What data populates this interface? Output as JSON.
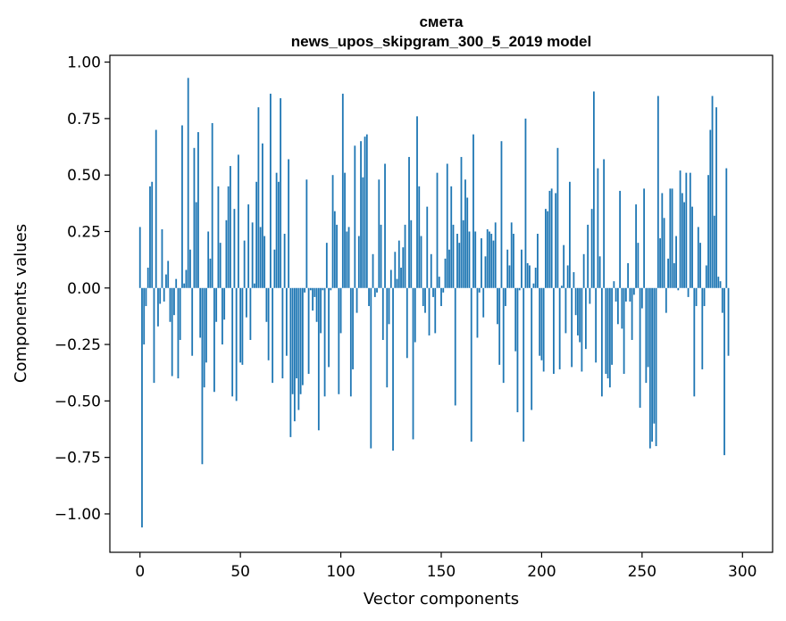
{
  "chart_data": {
    "type": "bar",
    "title": "смета",
    "subtitle": "news_upos_skipgram_300_5_2019 model",
    "xlabel": "Vector components",
    "ylabel": "Components values",
    "xlim": [
      -15,
      315
    ],
    "ylim": [
      -1.17,
      1.03
    ],
    "xticks": [
      0,
      50,
      100,
      150,
      200,
      250,
      300
    ],
    "xtick_labels": [
      "0",
      "50",
      "100",
      "150",
      "200",
      "250",
      "300"
    ],
    "yticks": [
      1.0,
      0.75,
      0.5,
      0.25,
      0.0,
      -0.25,
      -0.5,
      -0.75,
      -1.0
    ],
    "ytick_labels": [
      "1.00",
      "0.75",
      "0.50",
      "0.25",
      "0.00",
      "−0.25",
      "−0.50",
      "−0.75",
      "−1.00"
    ],
    "grid": false,
    "bar_color": "#1f77b4",
    "values": [
      0.27,
      -1.06,
      -0.25,
      -0.08,
      0.09,
      0.45,
      0.47,
      -0.42,
      0.7,
      -0.17,
      -0.07,
      0.26,
      -0.06,
      0.06,
      0.12,
      -0.15,
      -0.39,
      -0.12,
      0.04,
      -0.4,
      -0.23,
      0.72,
      0.02,
      0.08,
      0.93,
      0.17,
      -0.3,
      0.62,
      0.38,
      0.69,
      -0.22,
      -0.78,
      -0.44,
      -0.33,
      0.25,
      0.13,
      0.73,
      -0.46,
      -0.15,
      0.45,
      0.2,
      -0.25,
      -0.14,
      0.3,
      0.45,
      0.54,
      -0.48,
      0.35,
      -0.5,
      0.59,
      -0.33,
      -0.34,
      0.21,
      -0.13,
      0.37,
      -0.23,
      0.29,
      0.02,
      0.47,
      0.8,
      0.27,
      0.64,
      0.23,
      -0.15,
      -0.32,
      0.86,
      -0.42,
      0.17,
      0.51,
      0.47,
      0.84,
      -0.4,
      0.24,
      -0.3,
      0.57,
      -0.66,
      -0.47,
      -0.59,
      -0.4,
      -0.54,
      -0.47,
      -0.43,
      -0.02,
      0.48,
      -0.38,
      -0.01,
      -0.1,
      -0.04,
      -0.15,
      -0.63,
      -0.2,
      -0.01,
      -0.48,
      0.2,
      -0.35,
      -0.01,
      0.5,
      0.34,
      0.28,
      -0.47,
      -0.2,
      0.86,
      0.51,
      0.25,
      0.27,
      -0.48,
      -0.36,
      0.63,
      -0.11,
      0.23,
      0.65,
      0.49,
      0.67,
      0.68,
      -0.08,
      -0.71,
      0.15,
      -0.04,
      -0.02,
      0.48,
      0.28,
      -0.23,
      0.55,
      -0.44,
      -0.16,
      0.08,
      -0.72,
      0.16,
      0.04,
      0.21,
      0.09,
      0.18,
      0.28,
      -0.31,
      0.58,
      0.3,
      -0.67,
      -0.24,
      0.76,
      0.45,
      0.23,
      -0.08,
      -0.11,
      0.36,
      -0.21,
      0.15,
      -0.04,
      -0.2,
      0.51,
      0.05,
      -0.08,
      -0.02,
      0.13,
      0.55,
      0.17,
      0.45,
      0.28,
      -0.52,
      0.24,
      0.2,
      0.58,
      0.3,
      0.48,
      0.4,
      0.25,
      -0.68,
      0.68,
      0.25,
      -0.22,
      -0.02,
      0.22,
      -0.13,
      0.14,
      0.26,
      0.25,
      0.24,
      0.21,
      0.29,
      -0.16,
      -0.34,
      0.65,
      -0.42,
      -0.08,
      0.17,
      0.1,
      0.29,
      0.24,
      -0.28,
      -0.55,
      -0.01,
      0.17,
      -0.68,
      0.75,
      0.11,
      0.1,
      -0.54,
      0.02,
      0.09,
      0.24,
      -0.3,
      -0.32,
      -0.37,
      0.35,
      0.34,
      0.43,
      0.44,
      -0.38,
      0.42,
      0.62,
      -0.36,
      0.01,
      0.19,
      -0.2,
      0.1,
      0.47,
      -0.35,
      0.07,
      -0.12,
      -0.21,
      -0.24,
      -0.37,
      0.15,
      -0.27,
      0.28,
      -0.07,
      0.35,
      0.87,
      -0.33,
      0.53,
      0.14,
      -0.48,
      0.57,
      -0.38,
      -0.4,
      -0.44,
      -0.34,
      0.03,
      -0.06,
      -0.16,
      0.43,
      -0.18,
      -0.38,
      -0.06,
      0.11,
      -0.06,
      -0.23,
      -0.03,
      0.37,
      0.2,
      -0.53,
      -0.09,
      0.44,
      -0.42,
      -0.35,
      -0.71,
      -0.68,
      -0.6,
      -0.7,
      0.85,
      0.22,
      0.42,
      0.31,
      -0.11,
      0.13,
      0.44,
      0.44,
      0.11,
      0.23,
      -0.01,
      0.52,
      0.42,
      0.38,
      0.51,
      -0.04,
      0.51,
      0.36,
      -0.48,
      -0.08,
      0.27,
      0.2,
      -0.36,
      -0.08,
      0.1,
      0.5,
      0.7,
      0.85,
      0.32,
      0.8,
      0.05,
      0.03,
      -0.11,
      -0.74,
      0.53,
      -0.3
    ]
  }
}
